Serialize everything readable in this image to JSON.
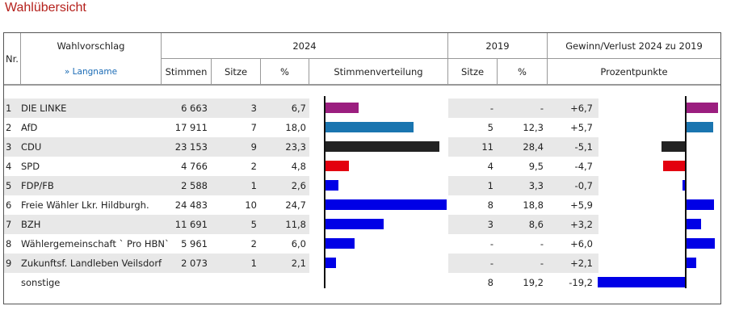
{
  "title": "Wahlübersicht",
  "header": {
    "nr": "Nr.",
    "wahlvorschlag": "Wahlvorschlag",
    "langname": "» Langname",
    "y2024": "2024",
    "y2019": "2019",
    "gewinn": "Gewinn/Verlust 2024 zu 2019",
    "stimmen": "Stimmen",
    "sitze": "Sitze",
    "prozent": "%",
    "stimmenverteilung": "Stimmenverteilung",
    "sitze2019": "Sitze",
    "prozent2019": "%",
    "prozentpunkte": "Prozentpunkte"
  },
  "rows": [
    {
      "nr": "1",
      "name": "DIE LINKE",
      "stimmen": "6 663",
      "sitze": "3",
      "pct": "6,7",
      "sitze19": "-",
      "pct19": "-",
      "diff": "+6,7",
      "pct_value": 6.7,
      "diff_value": 6.7,
      "color": "#9b1e7f"
    },
    {
      "nr": "2",
      "name": "AfD",
      "stimmen": "17 911",
      "sitze": "7",
      "pct": "18,0",
      "sitze19": "5",
      "pct19": "12,3",
      "diff": "+5,7",
      "pct_value": 18.0,
      "diff_value": 5.7,
      "color": "#1a75b0"
    },
    {
      "nr": "3",
      "name": "CDU",
      "stimmen": "23 153",
      "sitze": "9",
      "pct": "23,3",
      "sitze19": "11",
      "pct19": "28,4",
      "diff": "-5,1",
      "pct_value": 23.3,
      "diff_value": -5.1,
      "color": "#222222"
    },
    {
      "nr": "4",
      "name": "SPD",
      "stimmen": "4 766",
      "sitze": "2",
      "pct": "4,8",
      "sitze19": "4",
      "pct19": "9,5",
      "diff": "-4,7",
      "pct_value": 4.8,
      "diff_value": -4.7,
      "color": "#e3000f"
    },
    {
      "nr": "5",
      "name": "FDP/FB",
      "stimmen": "2 588",
      "sitze": "1",
      "pct": "2,6",
      "sitze19": "1",
      "pct19": "3,3",
      "diff": "-0,7",
      "pct_value": 2.6,
      "diff_value": -0.7,
      "color": "#0000e6"
    },
    {
      "nr": "6",
      "name": "Freie Wähler Lkr. Hildburgh.",
      "stimmen": "24 483",
      "sitze": "10",
      "pct": "24,7",
      "sitze19": "8",
      "pct19": "18,8",
      "diff": "+5,9",
      "pct_value": 24.7,
      "diff_value": 5.9,
      "color": "#0000e6"
    },
    {
      "nr": "7",
      "name": "BZH",
      "stimmen": "11 691",
      "sitze": "5",
      "pct": "11,8",
      "sitze19": "3",
      "pct19": "8,6",
      "diff": "+3,2",
      "pct_value": 11.8,
      "diff_value": 3.2,
      "color": "#0000e6"
    },
    {
      "nr": "8",
      "name": "Wählergemeinschaft ` Pro HBN`",
      "stimmen": "5 961",
      "sitze": "2",
      "pct": "6,0",
      "sitze19": "-",
      "pct19": "-",
      "diff": "+6,0",
      "pct_value": 6.0,
      "diff_value": 6.0,
      "color": "#0000e6"
    },
    {
      "nr": "9",
      "name": "Zukunftsf. Landleben Veilsdorf",
      "stimmen": "2 073",
      "sitze": "1",
      "pct": "2,1",
      "sitze19": "-",
      "pct19": "-",
      "diff": "+2,1",
      "pct_value": 2.1,
      "diff_value": 2.1,
      "color": "#0000e6"
    },
    {
      "nr": "",
      "name": "sonstige",
      "stimmen": "",
      "sitze": "",
      "pct": "",
      "sitze19": "8",
      "pct19": "19,2",
      "diff": "-19,2",
      "pct_value": 0,
      "diff_value": -19.2,
      "color": "#0000e6"
    }
  ]
}
